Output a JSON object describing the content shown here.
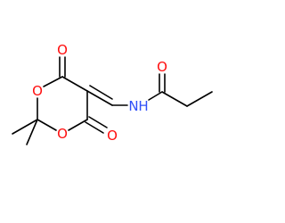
{
  "molecule": {
    "atoms": [
      {
        "label": "O"
      },
      {
        "label": "O"
      },
      {
        "label": "O"
      },
      {
        "label": "O"
      },
      {
        "label": "O"
      },
      {
        "label": "N"
      },
      {
        "label": "H"
      }
    ]
  }
}
